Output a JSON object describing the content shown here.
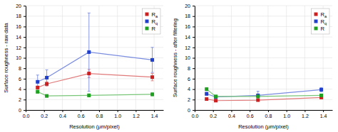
{
  "chart_data": [
    {
      "type": "line",
      "xlabel": "Resolution (μm/pixel)",
      "ylabel": "Surface roughness - raw data",
      "x": [
        0.13,
        0.23,
        0.69,
        1.38
      ],
      "xlim": [
        0,
        1.5
      ],
      "xticks": [
        {
          "value": 0,
          "label": "0.0"
        },
        0.2,
        0.4,
        0.6,
        0.8,
        {
          "value": 1,
          "label": "1.0"
        },
        1.2,
        1.4
      ],
      "ylim": [
        0,
        20
      ],
      "yticks": [
        0,
        2,
        4,
        6,
        8,
        10,
        12,
        14,
        16,
        18,
        20
      ],
      "grid": true,
      "legend": "upper right",
      "marker": "square",
      "series": [
        {
          "name": "Ra",
          "color": "#cc2020",
          "values": [
            4.3,
            5.0,
            7.0,
            6.3
          ],
          "errors": [
            0.3,
            0.4,
            0.8,
            0.7
          ]
        },
        {
          "name": "Rq",
          "color": "#2040cc",
          "values": [
            5.4,
            6.2,
            11.1,
            9.6
          ],
          "errors": [
            1.3,
            1.5,
            7.5,
            2.4
          ]
        },
        {
          "name": "R",
          "color": "#20a020",
          "values": [
            3.5,
            2.7,
            2.8,
            3.0
          ],
          "errors": [
            0.3,
            0.2,
            0.3,
            0.3
          ]
        }
      ]
    },
    {
      "type": "line",
      "xlabel": "Resolution (μm/pixel)",
      "ylabel": "Surface roughness - after filtering",
      "x": [
        0.13,
        0.23,
        0.69,
        1.38
      ],
      "xlim": [
        0,
        1.5
      ],
      "xticks": [
        {
          "value": 0,
          "label": "0.0"
        },
        0.2,
        0.4,
        0.6,
        0.8,
        {
          "value": 1,
          "label": "1.0"
        },
        1.2,
        1.4
      ],
      "ylim": [
        0,
        20
      ],
      "yticks": [
        0,
        2,
        4,
        6,
        8,
        10,
        12,
        14,
        16,
        18,
        20
      ],
      "grid": true,
      "legend": "upper right",
      "marker": "square",
      "series": [
        {
          "name": "Ra",
          "color": "#cc2020",
          "values": [
            2.1,
            1.8,
            1.9,
            2.4
          ],
          "errors": [
            0.2,
            0.2,
            0.2,
            0.2
          ]
        },
        {
          "name": "Rq",
          "color": "#2040cc",
          "values": [
            3.1,
            2.5,
            2.8,
            3.9
          ],
          "errors": [
            0.3,
            0.3,
            0.8,
            0.4
          ]
        },
        {
          "name": "R",
          "color": "#20a020",
          "values": [
            4.0,
            2.6,
            2.6,
            2.8
          ],
          "errors": [
            0.2,
            0.2,
            0.2,
            0.2
          ]
        }
      ]
    }
  ]
}
